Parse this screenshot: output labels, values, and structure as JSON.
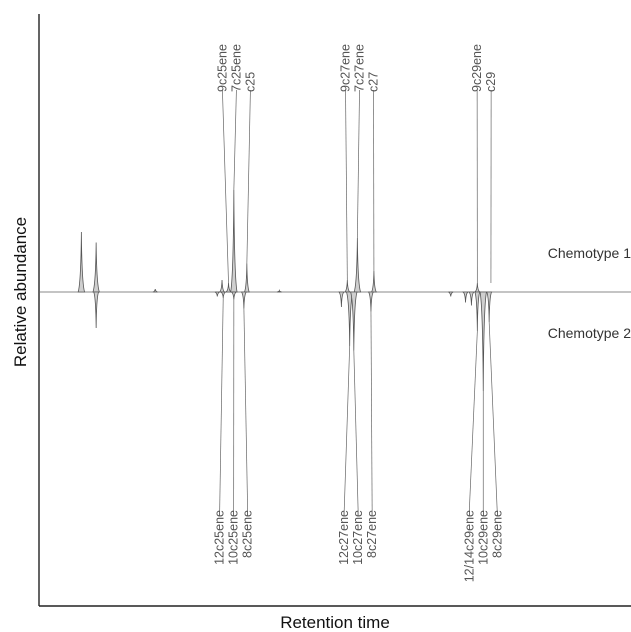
{
  "chart_data": {
    "type": "line",
    "title": "",
    "xlabel": "Retention time",
    "ylabel": "Relative abundance",
    "xlim": [
      0,
      100
    ],
    "ylim": [
      -100,
      100
    ],
    "grid": false,
    "series": [
      {
        "name": "Chemotype 1",
        "direction": "up",
        "peaks": [
          {
            "x": 7.0,
            "y": 40
          },
          {
            "x": 9.5,
            "y": 33
          },
          {
            "x": 19.5,
            "y": 2
          },
          {
            "x": 30.8,
            "y": 8
          },
          {
            "x": 31.9,
            "y": 6
          },
          {
            "x": 32.8,
            "y": 68
          },
          {
            "x": 35.0,
            "y": 19
          },
          {
            "x": 40.5,
            "y": 1
          },
          {
            "x": 52.0,
            "y": 8
          },
          {
            "x": 53.7,
            "y": 36
          },
          {
            "x": 56.5,
            "y": 14
          },
          {
            "x": 74.0,
            "y": 6
          }
        ]
      },
      {
        "name": "Chemotype 2",
        "direction": "down",
        "peaks": [
          {
            "x": 9.5,
            "y": 24
          },
          {
            "x": 30.0,
            "y": 3
          },
          {
            "x": 31.0,
            "y": 4
          },
          {
            "x": 32.8,
            "y": 5
          },
          {
            "x": 34.5,
            "y": 11
          },
          {
            "x": 51.0,
            "y": 10
          },
          {
            "x": 52.4,
            "y": 36
          },
          {
            "x": 53.1,
            "y": 39
          },
          {
            "x": 56.0,
            "y": 13
          },
          {
            "x": 69.5,
            "y": 3
          },
          {
            "x": 72.0,
            "y": 7
          },
          {
            "x": 73.0,
            "y": 9
          },
          {
            "x": 74.0,
            "y": 26
          },
          {
            "x": 75.0,
            "y": 66
          },
          {
            "x": 76.0,
            "y": 20
          }
        ]
      }
    ],
    "series_labels": [
      "Chemotype 1",
      "Chemotype 2"
    ],
    "annotations_top": [
      {
        "text": "9c25ene",
        "x": 31.9
      },
      {
        "text": "7c25ene",
        "x": 32.8
      },
      {
        "text": "c25",
        "x": 35.0
      },
      {
        "text": "9c27ene",
        "x": 52.0
      },
      {
        "text": "7c27ene",
        "x": 53.7
      },
      {
        "text": "c27",
        "x": 56.5
      },
      {
        "text": "9c29ene",
        "x": 74.0
      },
      {
        "text": "c29",
        "x": 76.3
      }
    ],
    "annotations_bottom": [
      {
        "text": "12c25ene",
        "x": 31.0
      },
      {
        "text": "10c25ene",
        "x": 32.8
      },
      {
        "text": "8c25ene",
        "x": 34.5
      },
      {
        "text": "12c27ene",
        "x": 52.4
      },
      {
        "text": "10c27ene",
        "x": 53.1
      },
      {
        "text": "8c27ene",
        "x": 56.0
      },
      {
        "text": "12/14c29ene",
        "x": 74.0
      },
      {
        "text": "10c29ene",
        "x": 75.0
      },
      {
        "text": "8c29ene",
        "x": 76.0
      }
    ]
  }
}
